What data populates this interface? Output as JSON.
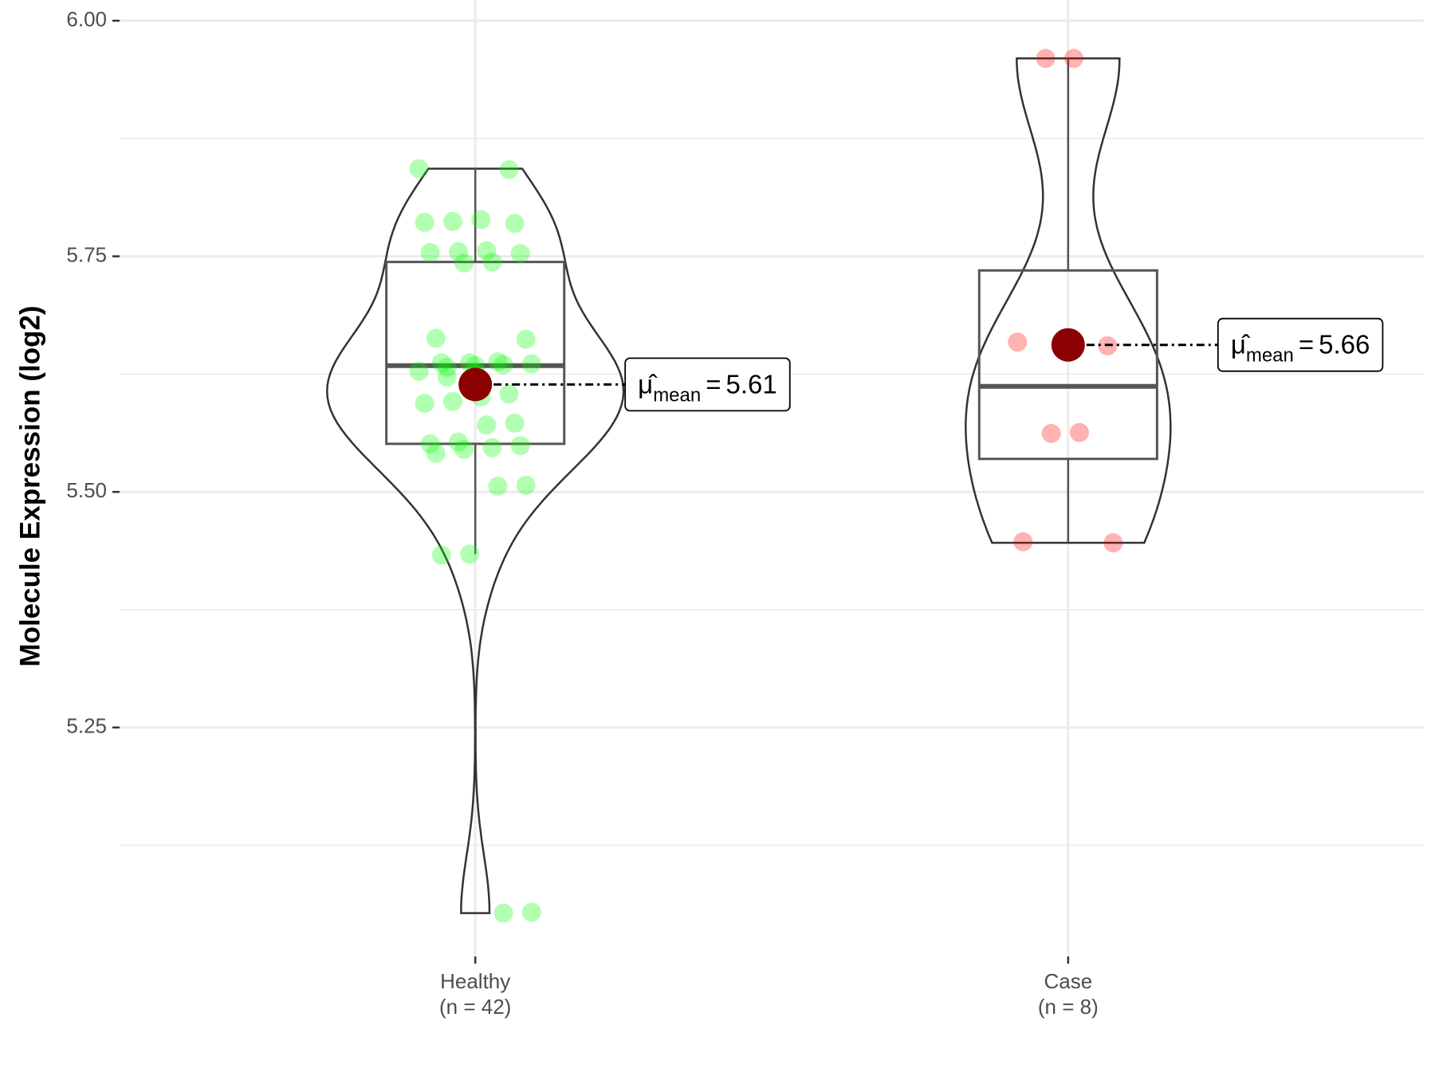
{
  "chart_data": {
    "type": "violin",
    "y_label": "Molecule Expression (log2)",
    "categories": [
      "Healthy",
      "Case"
    ],
    "count_labels": [
      "(n = 42)",
      "(n = 8)"
    ],
    "ylim": [
      5.007,
      6.022
    ],
    "yticks": [
      {
        "value": 5.25,
        "label": "5.25"
      },
      {
        "value": 5.5,
        "label": "5.50"
      },
      {
        "value": 5.75,
        "label": "5.75"
      },
      {
        "value": 6,
        "label": "6.00"
      }
    ],
    "minor_yticks": [
      5.125,
      5.375,
      5.625,
      5.875
    ],
    "grid": true,
    "stat_symbol": "μ̂",
    "stat_subscript": "mean",
    "stat_equals": "=",
    "mean_color": "#8b0000",
    "series": [
      {
        "name": "Healthy",
        "color": "#00ff00",
        "values": [
          5.843,
          5.842,
          5.789,
          5.787,
          5.786,
          5.785,
          5.756,
          5.755,
          5.754,
          5.753,
          5.744,
          5.743,
          5.663,
          5.662,
          5.638,
          5.637,
          5.637,
          5.636,
          5.635,
          5.634,
          5.632,
          5.628,
          5.604,
          5.601,
          5.596,
          5.594,
          5.573,
          5.571,
          5.553,
          5.551,
          5.549,
          5.547,
          5.545,
          5.541,
          5.507,
          5.506,
          5.434,
          5.433,
          5.054,
          5.053,
          5.626,
          5.622
        ],
        "box": {
          "whisker_low": 5.434,
          "q1": 5.551,
          "median": 5.634,
          "q3": 5.744,
          "whisker_high": 5.843
        },
        "mean": 5.614,
        "mean_label": "5.61"
      },
      {
        "name": "Case",
        "color": "#ff0000",
        "values": [
          5.96,
          5.96,
          5.659,
          5.655,
          5.563,
          5.562,
          5.447,
          5.446
        ],
        "box": {
          "whisker_low": 5.447,
          "q1": 5.535,
          "median": 5.612,
          "q3": 5.735,
          "whisker_high": 5.96
        },
        "mean": 5.656,
        "mean_label": "5.66"
      }
    ]
  }
}
